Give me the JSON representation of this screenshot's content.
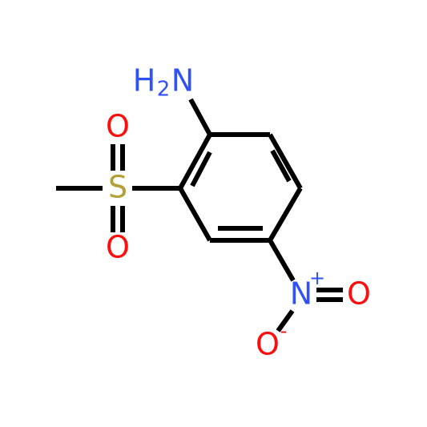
{
  "atoms": {
    "amine": {
      "h": "H",
      "count": "2",
      "n": "N"
    },
    "sulfur": "S",
    "sulfonyl_oxygen_top": "O",
    "sulfonyl_oxygen_bottom": "O",
    "nitro_nitrogen": {
      "label": "N",
      "charge": "+"
    },
    "nitro_oxygen_double": "O",
    "nitro_oxygen_single": {
      "label": "O",
      "charge": "-"
    }
  }
}
